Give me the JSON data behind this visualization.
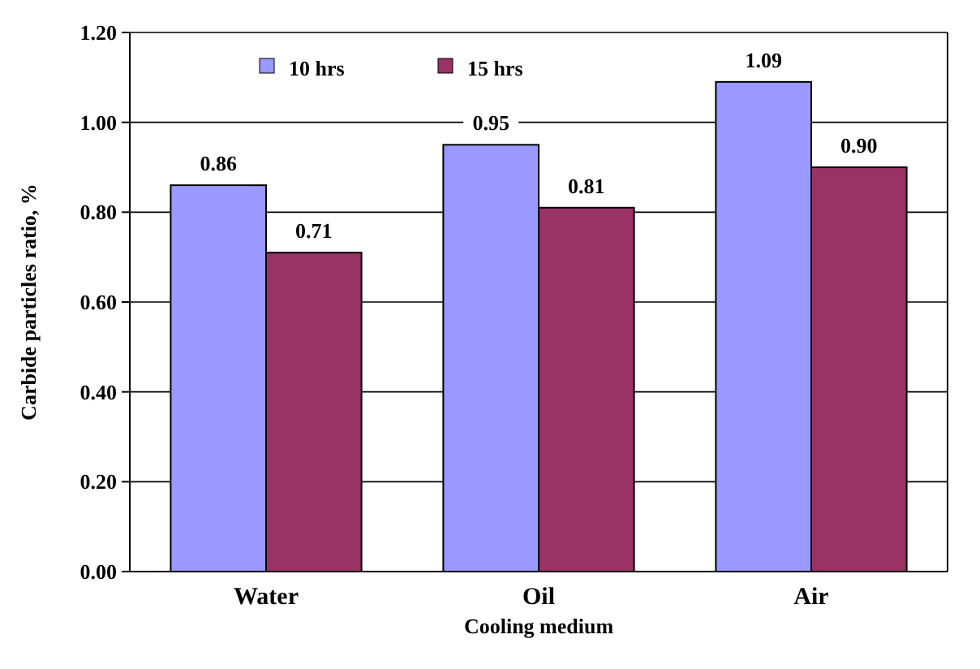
{
  "chart_data": {
    "type": "bar",
    "xlabel": "Cooling medium",
    "ylabel": "Carbide particles ratio, %",
    "categories": [
      "Water",
      "Oil",
      "Air"
    ],
    "series": [
      {
        "name": "10 hrs",
        "color": "#9999ff",
        "values": [
          0.86,
          0.95,
          1.09
        ],
        "value_labels": [
          "0.86",
          "0.95",
          "1.09"
        ]
      },
      {
        "name": "15 hrs",
        "color": "#993366",
        "values": [
          0.71,
          0.81,
          0.9
        ],
        "value_labels": [
          "0.71",
          "0.81",
          "0.90"
        ]
      }
    ],
    "ylim": [
      0,
      1.2
    ],
    "yticks": [
      {
        "value": 0,
        "label": "0.00"
      },
      {
        "value": 0.2,
        "label": "0.20"
      },
      {
        "value": 0.4,
        "label": "0.40"
      },
      {
        "value": 0.6,
        "label": "0.60"
      },
      {
        "value": 0.8,
        "label": "0.80"
      },
      {
        "value": 1,
        "label": "1.00"
      },
      {
        "value": 1.2,
        "label": "1.20"
      }
    ],
    "grid": "y",
    "legend": "top"
  }
}
